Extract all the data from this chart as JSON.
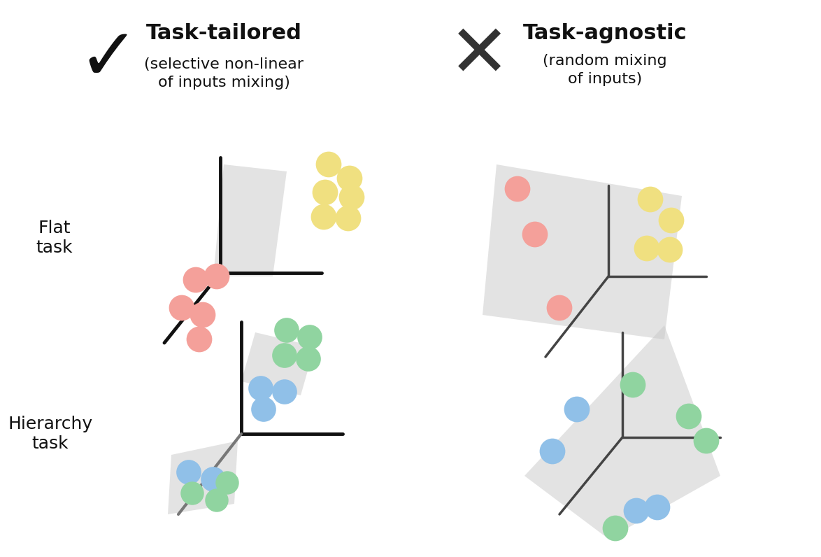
{
  "title_left": "Task-tailored",
  "subtitle_left": "(selective non-linear\nof inputs mixing)",
  "title_right": "Task-agnostic",
  "subtitle_right": "(random mixing\nof inputs)",
  "label_flat": "Flat\ntask",
  "label_hier": "Hierarchy\ntask",
  "bg_color": "#ffffff",
  "salmon_color": "#F4A09A",
  "yellow_color": "#F0E080",
  "green_color": "#90D4A0",
  "blue_color": "#90C0E8",
  "plane_color": "#C8C8C8"
}
